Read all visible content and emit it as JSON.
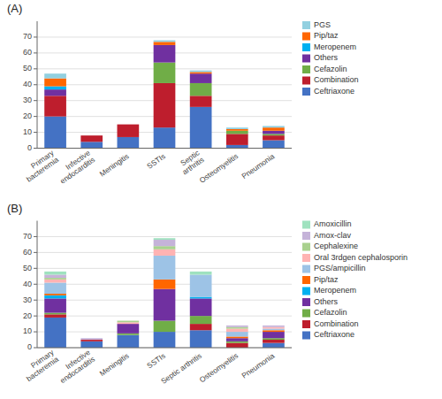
{
  "chart_data": [
    {
      "type": "bar",
      "title": "(A)",
      "stacked": true,
      "grid": true,
      "legend": "right",
      "categories": [
        "Primary\nbacteremia",
        "Infective\nendocarditis",
        "Meningitis",
        "SSTIs",
        "Septic\narthritis",
        "Osteomyelitis",
        "Pneumonia"
      ],
      "series": [
        {
          "name": "Ceftriaxone",
          "color": "#4472C4",
          "values": [
            20,
            4,
            7,
            13,
            26,
            2,
            5
          ]
        },
        {
          "name": "Combination",
          "color": "#BE1E2D",
          "values": [
            13,
            4,
            8,
            28,
            7,
            7,
            3
          ]
        },
        {
          "name": "Cefazolin",
          "color": "#70AD47",
          "values": [
            0,
            0,
            0,
            13,
            8,
            2,
            1
          ]
        },
        {
          "name": "Others",
          "color": "#7030A0",
          "values": [
            4,
            0,
            0,
            11,
            6,
            0,
            2
          ]
        },
        {
          "name": "Meropenem",
          "color": "#00B0F0",
          "values": [
            2,
            0,
            0,
            0,
            0,
            0,
            0
          ]
        },
        {
          "name": "Pip/taz",
          "color": "#FF6600",
          "values": [
            5,
            0,
            0,
            2,
            1,
            1,
            2
          ]
        },
        {
          "name": "PGS",
          "color": "#92D0E0",
          "values": [
            3,
            0,
            0,
            1,
            1,
            1,
            1
          ]
        }
      ],
      "ylim": [
        0,
        80
      ],
      "yticks": [
        0,
        10,
        20,
        30,
        40,
        50,
        60,
        70
      ]
    },
    {
      "type": "bar",
      "title": "(B)",
      "stacked": true,
      "grid": true,
      "legend": "right",
      "categories": [
        "Primary\nbacteremia",
        "Infective\nendocarditis",
        "Meningitis",
        "SSTIs",
        "Septic arthritis",
        "Osteomyelitis",
        "Pneumonia"
      ],
      "series": [
        {
          "name": "Ceftriaxone",
          "color": "#4472C4",
          "values": [
            19,
            4,
            8,
            10,
            11,
            0,
            3
          ]
        },
        {
          "name": "Combination",
          "color": "#BE1E2D",
          "values": [
            2,
            1,
            0,
            0,
            4,
            3,
            2
          ]
        },
        {
          "name": "Cefazolin",
          "color": "#70AD47",
          "values": [
            1,
            0,
            1,
            7,
            5,
            1,
            1
          ]
        },
        {
          "name": "Others",
          "color": "#7030A0",
          "values": [
            9,
            0,
            6,
            20,
            11,
            2,
            4
          ]
        },
        {
          "name": "Meropenem",
          "color": "#00B0F0",
          "values": [
            2,
            0,
            0,
            0,
            1,
            0,
            0
          ]
        },
        {
          "name": "Pip/taz",
          "color": "#FF6600",
          "values": [
            1,
            0,
            0,
            6,
            0,
            1,
            1
          ]
        },
        {
          "name": "PGS/ampicillin",
          "color": "#9DC3E6",
          "values": [
            7,
            0,
            0,
            15,
            14,
            3,
            1
          ]
        },
        {
          "name": "Oral 3rdgen cephalosporin",
          "color": "#FFB3B3",
          "values": [
            2,
            0,
            1,
            4,
            0,
            2,
            1
          ]
        },
        {
          "name": "Cephalexine",
          "color": "#A9D18E",
          "values": [
            1,
            0,
            1,
            2,
            0,
            1,
            0
          ]
        },
        {
          "name": "Amox-clav",
          "color": "#C5B3D9",
          "values": [
            2,
            1,
            0,
            4,
            0,
            1,
            1
          ]
        },
        {
          "name": "Amoxicillin",
          "color": "#9FE2BF",
          "values": [
            2,
            0,
            0,
            1,
            2,
            0,
            0
          ]
        }
      ],
      "ylim": [
        0,
        80
      ],
      "yticks": [
        0,
        10,
        20,
        30,
        40,
        50,
        60,
        70
      ]
    }
  ]
}
